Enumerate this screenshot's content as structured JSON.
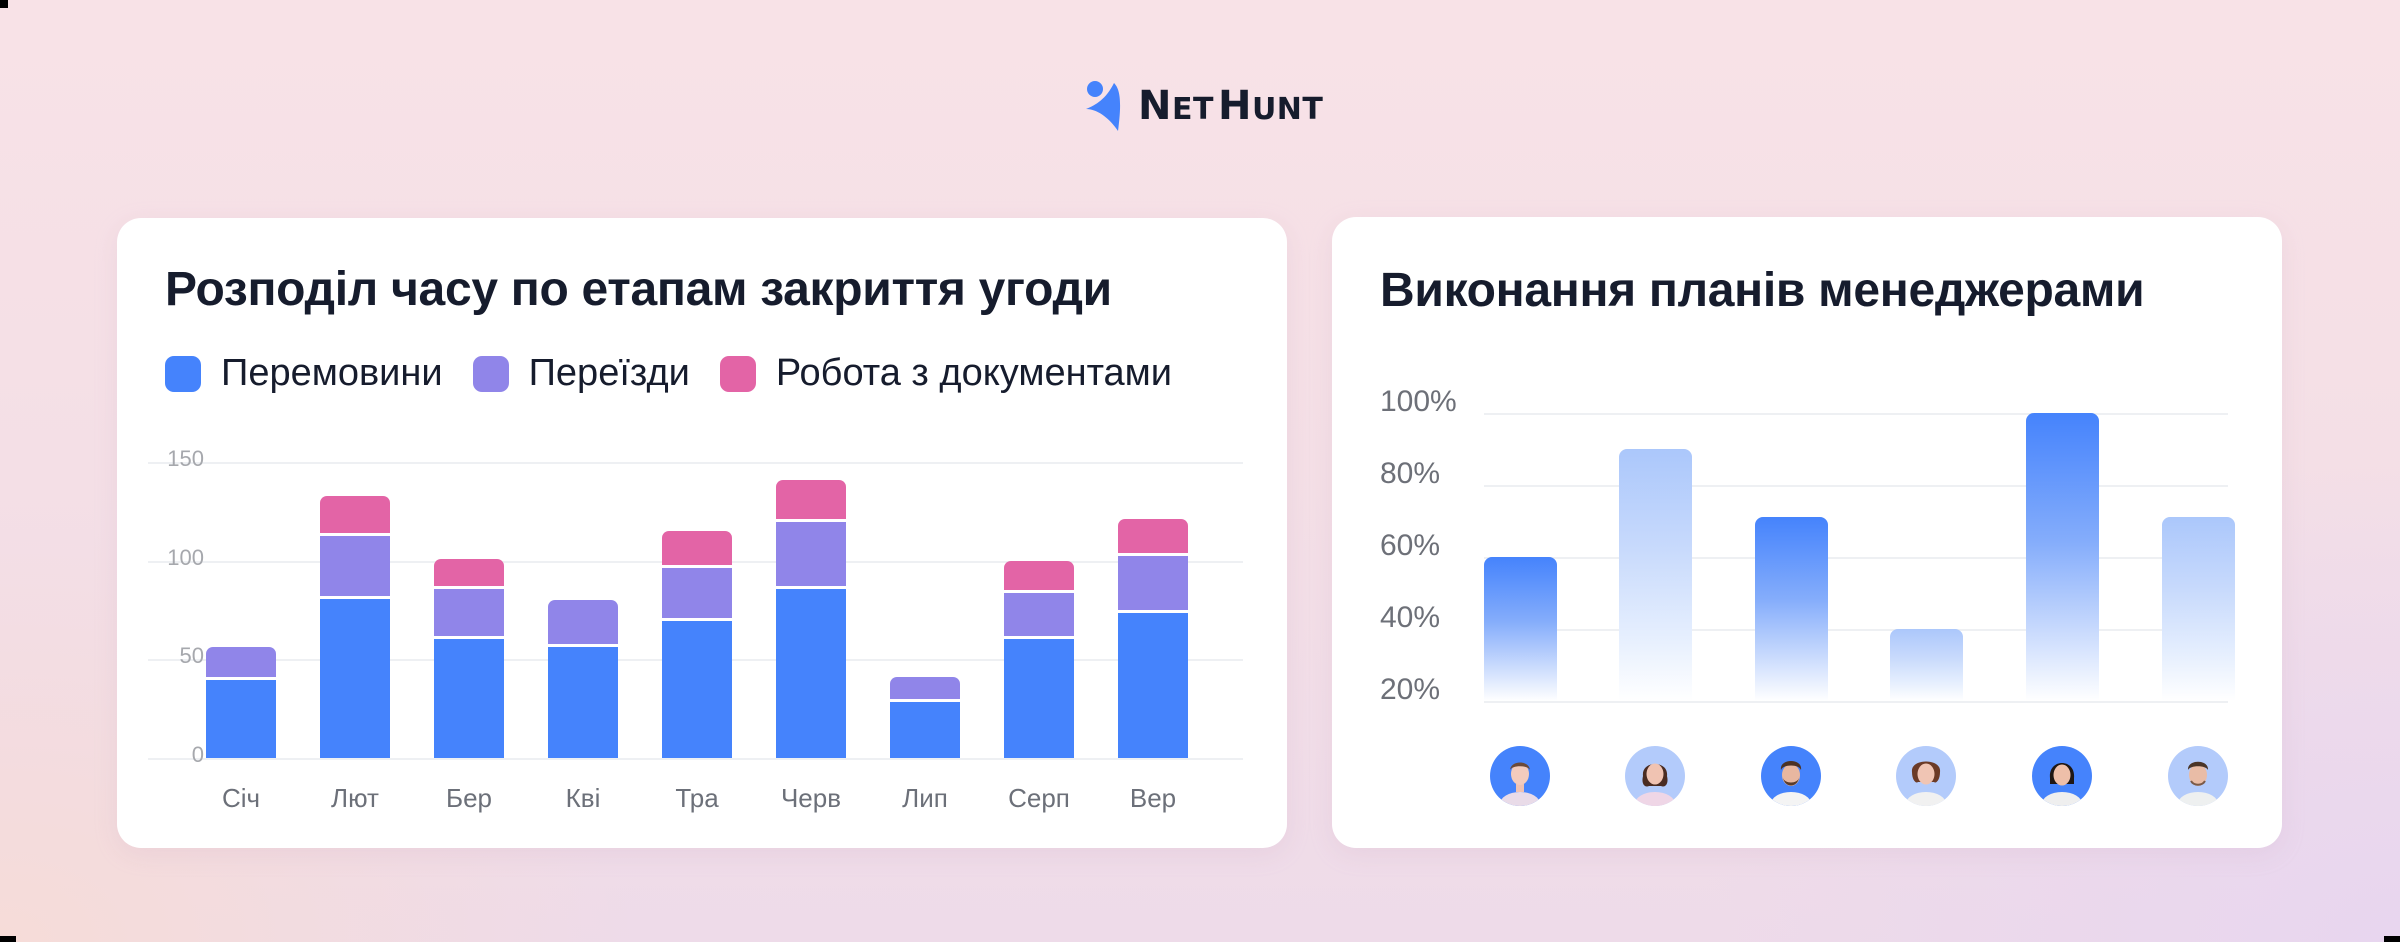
{
  "brand": {
    "logo_text_1": "N",
    "logo_text_2": "ET",
    "logo_text_3": "H",
    "logo_text_4": "UNT",
    "name": "NetHunt",
    "colors": {
      "blue": "#4583fc",
      "dark": "#161c2d"
    }
  },
  "left_card": {
    "title": "Розподіл часу по етапам закриття угоди",
    "legend": [
      {
        "label": "Перемовини",
        "color": "#4583fc"
      },
      {
        "label": "Переїзди",
        "color": "#9085e9"
      },
      {
        "label": "Робота з документами",
        "color": "#e364a6"
      }
    ],
    "y_ticks": [
      "150",
      "100",
      "50",
      "0"
    ],
    "x_ticks": [
      "Січ",
      "Лют",
      "Бер",
      "Кві",
      "Тра",
      "Черв",
      "Лип",
      "Серп",
      "Вер"
    ]
  },
  "right_card": {
    "title": "Виконання планів менеджерами",
    "y_ticks": [
      "100%",
      "80%",
      "60%",
      "40%",
      "20%"
    ],
    "managers": [
      {
        "avatar": "woman-light-hair-avatar",
        "style": "strong"
      },
      {
        "avatar": "woman-wavy-hair-avatar",
        "style": "soft"
      },
      {
        "avatar": "man-curly-beard-avatar",
        "style": "strong"
      },
      {
        "avatar": "woman-curly-hair-avatar",
        "style": "soft"
      },
      {
        "avatar": "woman-bob-hair-avatar",
        "style": "strong"
      },
      {
        "avatar": "man-short-hair-avatar",
        "style": "soft"
      }
    ]
  },
  "chart_data": [
    {
      "type": "bar",
      "stacked": true,
      "title": "Розподіл часу по етапам закриття угоди",
      "categories": [
        "Січ",
        "Лют",
        "Бер",
        "Кві",
        "Тра",
        "Черв",
        "Лип",
        "Серп",
        "Вер"
      ],
      "series": [
        {
          "name": "Перемовини",
          "color": "#4583fc",
          "values": [
            41,
            82,
            62,
            58,
            71,
            87,
            30,
            62,
            75
          ]
        },
        {
          "name": "Переїзди",
          "color": "#9085e9",
          "values": [
            15,
            32,
            25,
            22,
            27,
            34,
            11,
            23,
            29
          ]
        },
        {
          "name": "Робота з документами",
          "color": "#e364a6",
          "values": [
            0,
            19,
            14,
            0,
            17,
            20,
            0,
            15,
            17
          ]
        }
      ],
      "xlabel": "",
      "ylabel": "",
      "ylim": [
        0,
        150
      ],
      "yticks": [
        0,
        50,
        100,
        150
      ],
      "grid": true,
      "legend_position": "top"
    },
    {
      "type": "bar",
      "title": "Виконання планів менеджерами",
      "categories": [
        "Менеджер 1",
        "Менеджер 2",
        "Менеджер 3",
        "Менеджер 4",
        "Менеджер 5",
        "Менеджер 6"
      ],
      "values": [
        60,
        90,
        71,
        40,
        100,
        71
      ],
      "unit": "%",
      "xlabel": "",
      "ylabel": "",
      "ylim": [
        20,
        100
      ],
      "yticks": [
        "20%",
        "40%",
        "60%",
        "80%",
        "100%"
      ],
      "grid": true,
      "x_labels_are_avatars": true
    }
  ]
}
